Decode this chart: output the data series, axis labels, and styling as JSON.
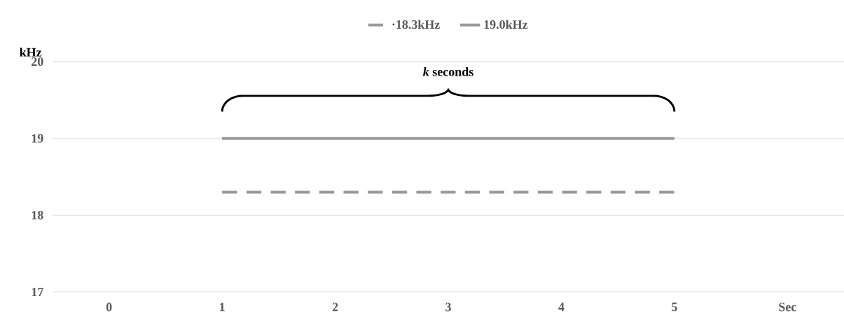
{
  "chart_data": {
    "type": "line",
    "categories": [
      "0",
      "1",
      "2",
      "3",
      "4",
      "5",
      "Sec"
    ],
    "series": [
      {
        "name": "·18.3kHz",
        "color": "#999999",
        "line_style": "dashed",
        "values": [
          null,
          18.3,
          18.3,
          18.3,
          18.3,
          18.3,
          null
        ]
      },
      {
        "name": "19.0kHz",
        "color": "#999999",
        "line_style": "solid",
        "values": [
          null,
          19.0,
          19.0,
          19.0,
          19.0,
          19.0,
          null
        ]
      }
    ],
    "ylabel": "kHz",
    "ylim": [
      17,
      20
    ],
    "yticks": [
      17,
      18,
      19,
      20
    ],
    "grid": "y",
    "legend": "top",
    "marker": "none",
    "annotations": [
      "*k* seconds"
    ]
  }
}
